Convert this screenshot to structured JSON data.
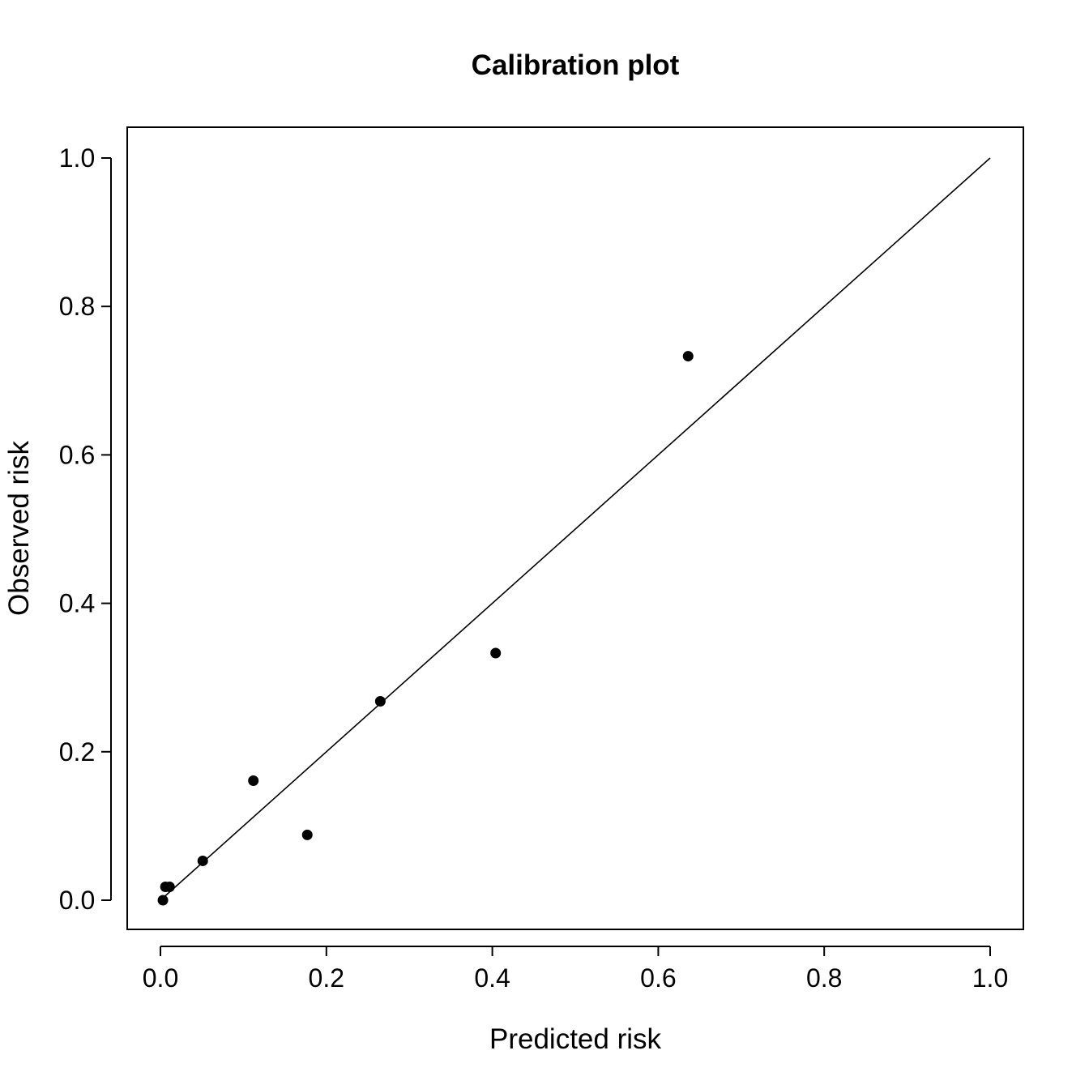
{
  "chart_data": {
    "type": "scatter",
    "title": "Calibration plot",
    "xlabel": "Predicted risk",
    "ylabel": "Observed risk",
    "xlim": [
      0.0,
      1.0
    ],
    "ylim": [
      0.0,
      1.0
    ],
    "x_ticks": [
      "0.0",
      "0.2",
      "0.4",
      "0.6",
      "0.8",
      "1.0"
    ],
    "y_ticks": [
      "0.0",
      "0.2",
      "0.4",
      "0.6",
      "0.8",
      "1.0"
    ],
    "grid": false,
    "reference_line": {
      "x": [
        0.0,
        1.0
      ],
      "y": [
        0.0,
        1.0
      ]
    },
    "points": [
      {
        "x": 0.003,
        "y": 0.0
      },
      {
        "x": 0.006,
        "y": 0.018
      },
      {
        "x": 0.011,
        "y": 0.018
      },
      {
        "x": 0.051,
        "y": 0.053
      },
      {
        "x": 0.112,
        "y": 0.161
      },
      {
        "x": 0.177,
        "y": 0.088
      },
      {
        "x": 0.265,
        "y": 0.268
      },
      {
        "x": 0.404,
        "y": 0.333
      },
      {
        "x": 0.636,
        "y": 0.733
      }
    ]
  }
}
